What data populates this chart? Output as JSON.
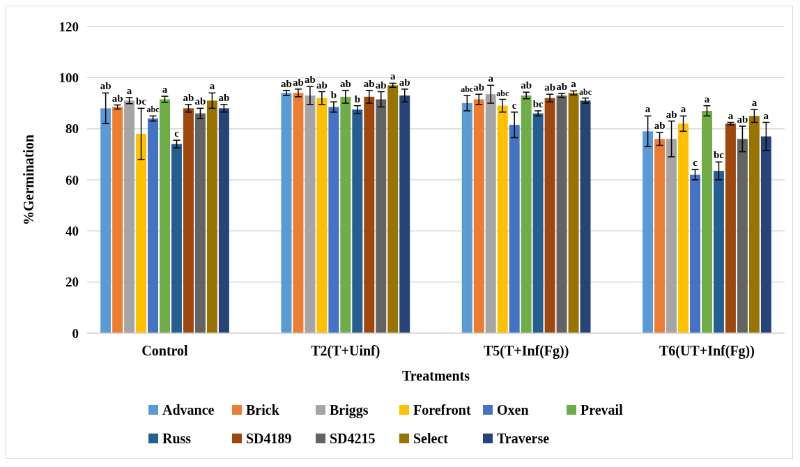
{
  "chart_data": {
    "type": "bar",
    "xlabel": "Treatments",
    "ylabel": "%Germination",
    "categories": [
      "Control",
      "T2(T+Uinf)",
      "T5(T+Inf(Fg))",
      "T6(UT+Inf(Fg))"
    ],
    "ylim": [
      0,
      120
    ],
    "yticks": [
      0,
      20,
      40,
      60,
      80,
      100,
      120
    ],
    "grid": "y",
    "legend": "bottom",
    "series": [
      {
        "name": "Advance",
        "color": "#5b9bd5",
        "values": [
          88,
          94,
          90,
          79
        ],
        "errors": [
          6,
          1,
          3,
          6
        ],
        "value_labels": [
          "ab",
          "ab",
          "abc",
          "a"
        ]
      },
      {
        "name": "Brick",
        "color": "#ed7d31",
        "values": [
          88.5,
          94,
          91.5,
          76
        ],
        "errors": [
          0.8,
          1.5,
          2,
          2.5
        ],
        "value_labels": [
          "ab",
          "ab",
          "ab",
          "ab"
        ]
      },
      {
        "name": "Briggs",
        "color": "#a5a5a5",
        "values": [
          91,
          93,
          93.5,
          76
        ],
        "errors": [
          1.2,
          3.5,
          3.5,
          7
        ],
        "value_labels": [
          "a",
          "ab",
          "a",
          "ab"
        ]
      },
      {
        "name": "Forefront",
        "color": "#ffc000",
        "values": [
          78,
          92,
          89,
          82
        ],
        "errors": [
          10,
          2.5,
          2.5,
          3
        ],
        "value_labels": [
          "bc",
          "ab",
          "abc",
          "a"
        ]
      },
      {
        "name": "Oxen",
        "color": "#4472c4",
        "values": [
          84,
          88.5,
          81.5,
          62
        ],
        "errors": [
          1,
          2,
          5,
          2
        ],
        "value_labels": [
          "abc",
          "b",
          "c",
          "c"
        ]
      },
      {
        "name": "Prevail",
        "color": "#70ad47",
        "values": [
          91.5,
          92.5,
          93,
          87
        ],
        "errors": [
          1.2,
          2.5,
          1.3,
          2
        ],
        "value_labels": [
          "a",
          "ab",
          "ab",
          "a"
        ]
      },
      {
        "name": "Russ",
        "color": "#255e91",
        "values": [
          74,
          87.5,
          86,
          63.5
        ],
        "errors": [
          1.5,
          1.5,
          1,
          3.5
        ],
        "value_labels": [
          "c",
          "b",
          "bc",
          "bc"
        ]
      },
      {
        "name": "SD4189",
        "color": "#9e480e",
        "values": [
          88,
          92.5,
          92,
          82
        ],
        "errors": [
          1.5,
          2.5,
          1.5,
          0.5
        ],
        "value_labels": [
          "ab",
          "ab",
          "ab",
          "a"
        ]
      },
      {
        "name": "SD4215",
        "color": "#636363",
        "values": [
          86,
          91.5,
          93,
          76
        ],
        "errors": [
          2,
          3,
          0.8,
          5
        ],
        "value_labels": [
          "ab",
          "ab",
          "ab",
          "ab"
        ]
      },
      {
        "name": "Select",
        "color": "#997300",
        "values": [
          91,
          97,
          94,
          85
        ],
        "errors": [
          3,
          0.8,
          0.8,
          2.5
        ],
        "value_labels": [
          "a",
          "a",
          "a",
          "a"
        ]
      },
      {
        "name": "Traverse",
        "color": "#264478",
        "values": [
          88,
          93,
          91,
          77
        ],
        "errors": [
          1.5,
          2.5,
          1,
          5.5
        ],
        "value_labels": [
          "ab",
          "ab",
          "abc",
          "a"
        ]
      }
    ]
  }
}
